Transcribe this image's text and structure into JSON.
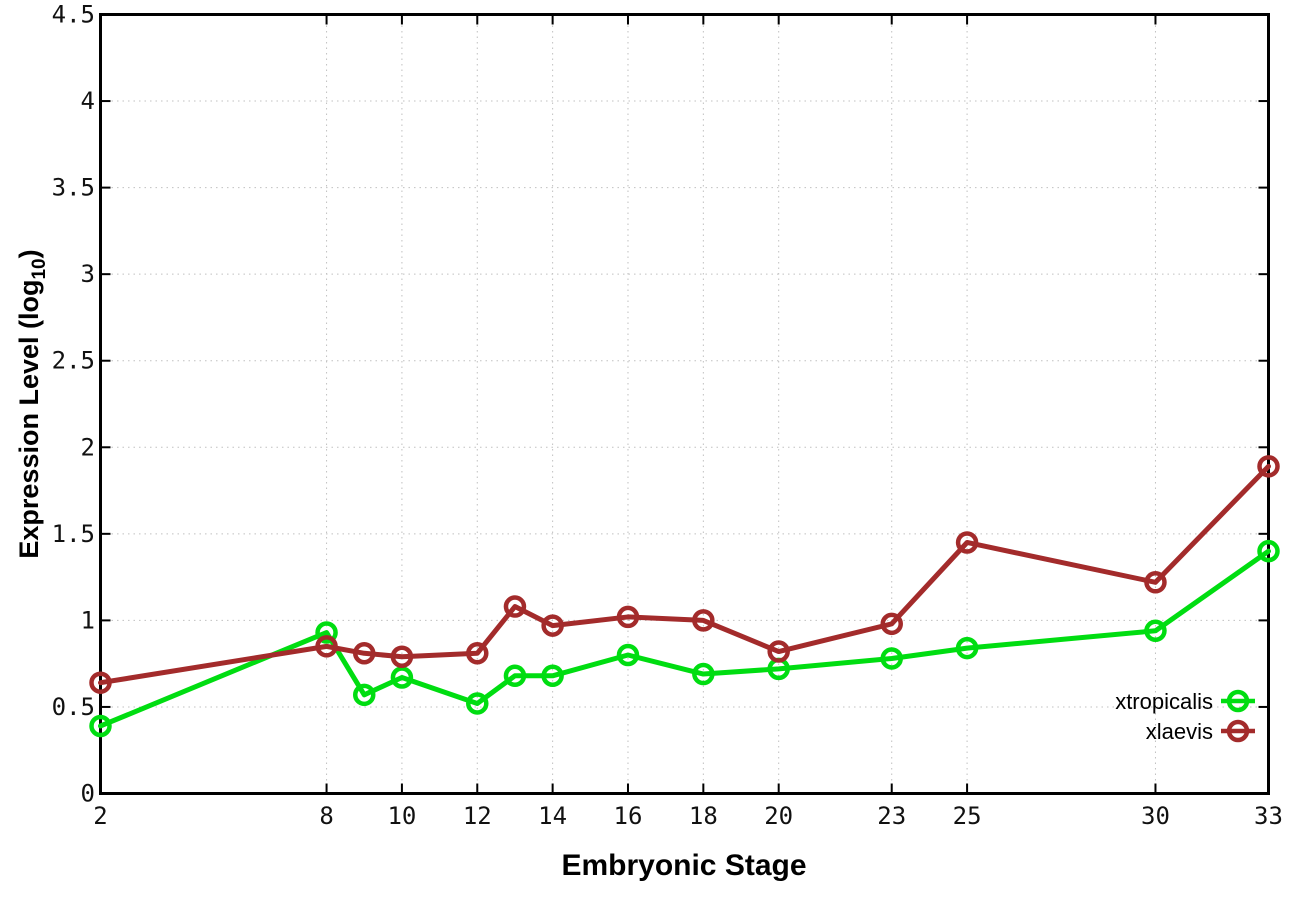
{
  "chart_data": {
    "type": "line",
    "title": "",
    "xlabel": "Embryonic Stage",
    "ylabel": "Expression Level (log10)",
    "ylabel_parts": {
      "pre": "Expression Level (log",
      "sub": "10",
      "post": ")"
    },
    "x": [
      2,
      8,
      9,
      10,
      12,
      13,
      14,
      16,
      18,
      20,
      23,
      25,
      30,
      33
    ],
    "x_tick_labels": [
      "2",
      "8",
      "10",
      "12",
      "14",
      "16",
      "18",
      "20",
      "23",
      "25",
      "30",
      "33"
    ],
    "x_ticks": [
      2,
      8,
      10,
      12,
      14,
      16,
      18,
      20,
      23,
      25,
      30,
      33
    ],
    "xlim": [
      2,
      33
    ],
    "y_tick_labels": [
      "0",
      "0.5",
      "1",
      "1.5",
      "2",
      "2.5",
      "3",
      "3.5",
      "4",
      "4.5"
    ],
    "y_ticks": [
      0,
      0.5,
      1,
      1.5,
      2,
      2.5,
      3,
      3.5,
      4,
      4.5
    ],
    "ylim": [
      0,
      4.5
    ],
    "grid": true,
    "legend_position": "bottom-right-inside",
    "series": [
      {
        "name": "xtropicalis",
        "color": "#00dd11",
        "values": [
          0.39,
          0.93,
          0.57,
          0.67,
          0.52,
          0.68,
          0.68,
          0.8,
          0.69,
          0.72,
          0.78,
          0.84,
          0.94,
          1.4
        ]
      },
      {
        "name": "xlaevis",
        "color": "#a32b2b",
        "values": [
          0.64,
          0.85,
          0.81,
          0.79,
          0.81,
          1.08,
          0.97,
          1.02,
          1.0,
          0.82,
          0.98,
          1.45,
          1.22,
          1.89
        ]
      }
    ],
    "colors": {
      "axis": "#000000",
      "grid": "#c0c0c0",
      "tick_text": "#111111",
      "background": "#ffffff"
    }
  }
}
